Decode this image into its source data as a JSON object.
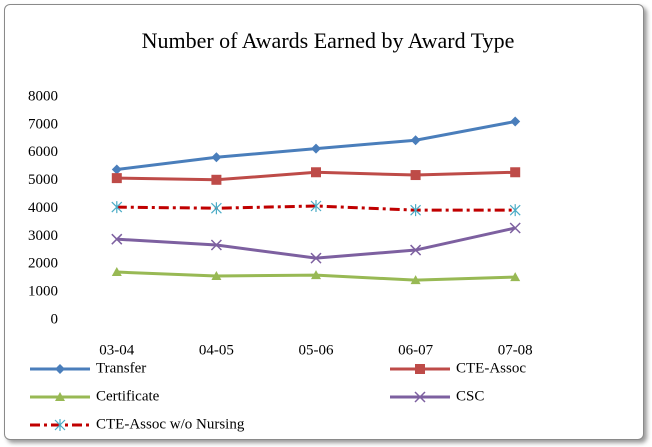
{
  "chart_data": {
    "type": "line",
    "title": "Number of Awards Earned by Award Type",
    "categories": [
      "03-04",
      "04-05",
      "05-06",
      "06-07",
      "07-08"
    ],
    "series": [
      {
        "name": "Transfer",
        "color": "#4a7ebb",
        "marker": "diamond",
        "dash": "solid",
        "values": [
          5400,
          5840,
          6150,
          6450,
          7120
        ]
      },
      {
        "name": "CTE-Assoc",
        "color": "#be4b48",
        "marker": "square",
        "dash": "solid",
        "values": [
          5090,
          5030,
          5300,
          5200,
          5300
        ]
      },
      {
        "name": "Certificate",
        "color": "#98b954",
        "marker": "triangle",
        "dash": "solid",
        "values": [
          1720,
          1580,
          1610,
          1430,
          1540
        ]
      },
      {
        "name": "CSC",
        "color": "#7d60a0",
        "marker": "x",
        "dash": "solid",
        "values": [
          2900,
          2690,
          2220,
          2510,
          3300
        ]
      },
      {
        "name": "CTE-Assoc w/o Nursing",
        "color": "#c00000",
        "marker_color": "#4bacc6",
        "marker": "asterisk",
        "dash": "dash-dot",
        "values": [
          4050,
          4010,
          4090,
          3940,
          3940
        ]
      }
    ],
    "ylim": [
      0,
      8000
    ],
    "yticks": [
      0,
      1000,
      2000,
      3000,
      4000,
      5000,
      6000,
      7000,
      8000
    ],
    "grid": false,
    "legend": "bottom"
  }
}
